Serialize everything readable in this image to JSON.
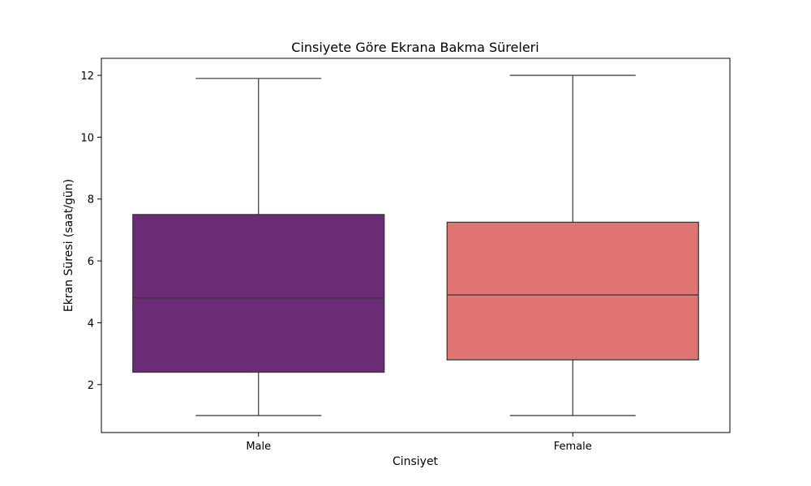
{
  "chart_data": {
    "type": "box",
    "title": "Cinsiyete Göre Ekrana Bakma Süreleri",
    "xlabel": "Cinsiyet",
    "ylabel": "Ekran Süresi (saat/gün)",
    "ylim": [
      0.45,
      12.55
    ],
    "yticks": [
      2,
      4,
      6,
      8,
      10,
      12
    ],
    "categories": [
      "Male",
      "Female"
    ],
    "series": [
      {
        "category": "Male",
        "min": 1.0,
        "q1": 2.4,
        "median": 4.8,
        "q3": 7.5,
        "max": 11.9,
        "color": "#6a2c75"
      },
      {
        "category": "Female",
        "min": 1.0,
        "q1": 2.8,
        "median": 4.9,
        "q3": 7.25,
        "max": 12.0,
        "color": "#e07470"
      }
    ],
    "grid": false
  }
}
